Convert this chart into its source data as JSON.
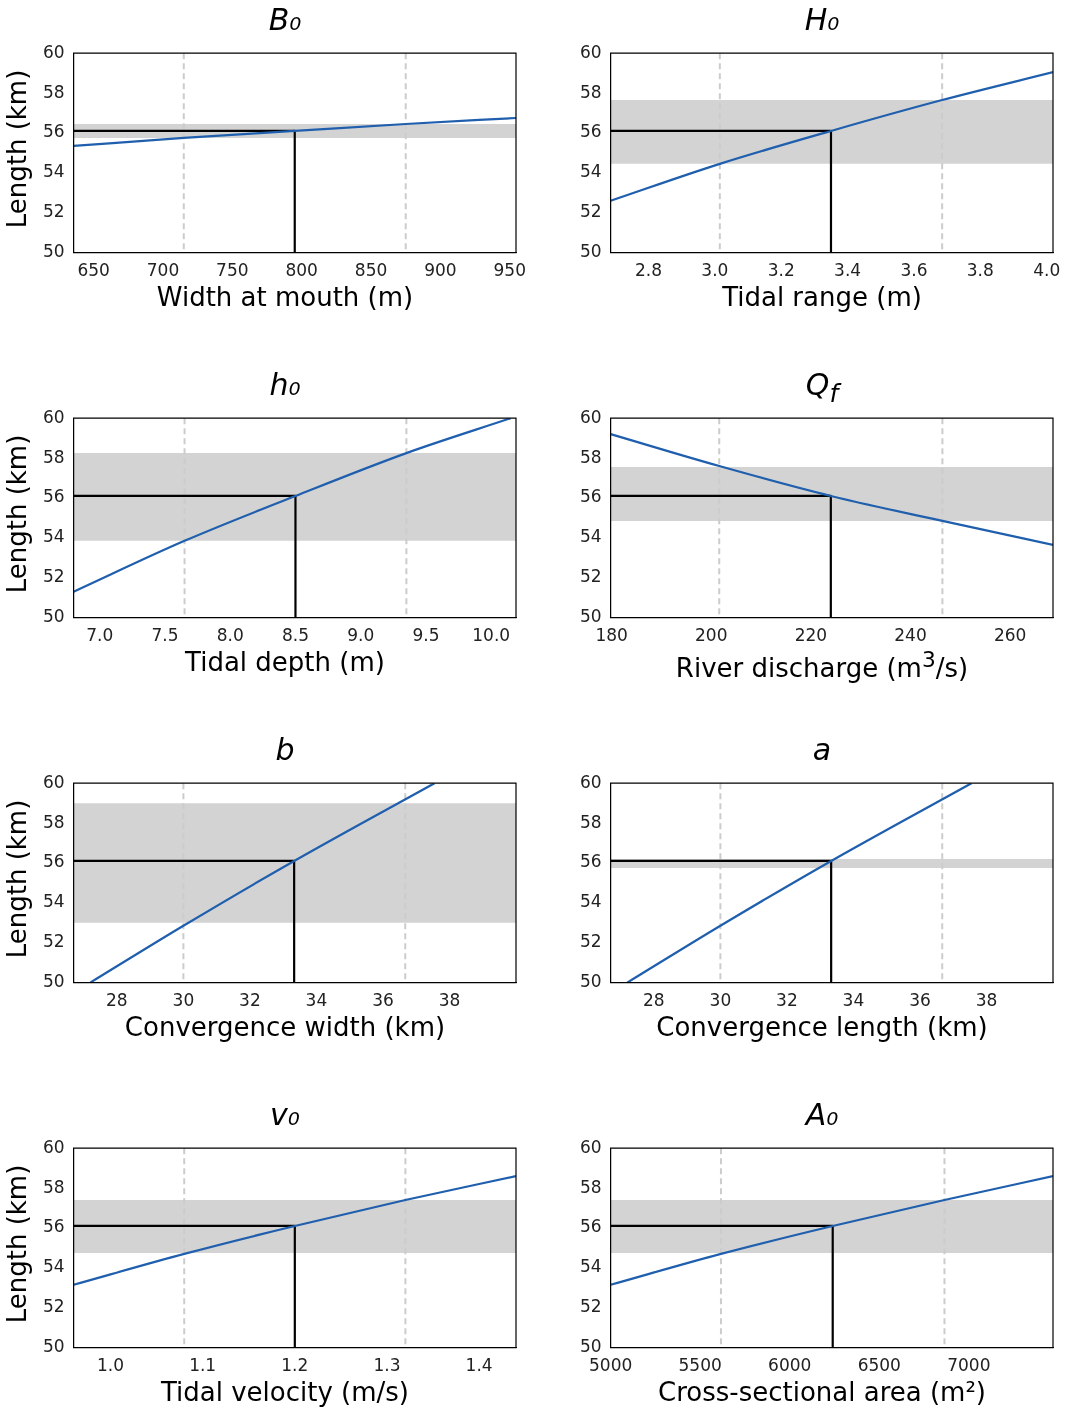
{
  "chart_data": [
    {
      "type": "line",
      "title": "B₀",
      "xlabel": "Width at mouth (m)",
      "ylabel": "Length (km)",
      "xlim": [
        635.6,
        954.5
      ],
      "xticks": [
        650,
        700,
        750,
        800,
        850,
        900,
        950
      ],
      "ylim": [
        50,
        60
      ],
      "yticks": [
        50,
        52,
        54,
        56,
        58,
        60
      ],
      "grid": false,
      "legend": false,
      "series": [
        {
          "color": "#1f5fad",
          "x": [
            635.6,
            715,
            795,
            875,
            954.5
          ],
          "values": [
            55.35,
            55.75,
            56.1,
            56.45,
            56.75
          ]
        },
        {
          "color": "#000000",
          "x": [
            635.6,
            795,
            795
          ],
          "values": [
            56.1,
            56.1,
            50
          ]
        }
      ],
      "ref_lines": [
        {
          "axis": "x",
          "value": 715,
          "color": "#cccccc",
          "line_style": "dashed"
        },
        {
          "axis": "x",
          "value": 875,
          "color": "#cccccc",
          "line_style": "dashed"
        }
      ],
      "bands": [
        {
          "axis": "y",
          "from": 55.75,
          "to": 56.45,
          "color": "#d3d3d3"
        }
      ]
    },
    {
      "type": "line",
      "title": "H₀",
      "xlabel": "Tidal range (m)",
      "xlim": [
        2.686,
        4.019
      ],
      "xticks": [
        2.8,
        {
          "value": 3,
          "label": "3.0"
        },
        3.2,
        3.4,
        3.6,
        3.8,
        {
          "value": 4,
          "label": "4.0"
        }
      ],
      "ylim": [
        50,
        60
      ],
      "yticks": [
        50,
        52,
        54,
        56,
        58,
        60
      ],
      "grid": false,
      "legend": false,
      "series": [
        {
          "color": "#1f5fad",
          "x": [
            2.686,
            3.015,
            3.35,
            3.685,
            4.019
          ],
          "values": [
            52.6,
            54.45,
            56.1,
            57.65,
            59.05
          ]
        },
        {
          "color": "#000000",
          "x": [
            2.686,
            3.35,
            3.35
          ],
          "values": [
            56.1,
            56.1,
            50
          ]
        }
      ],
      "ref_lines": [
        {
          "axis": "x",
          "value": 3.015,
          "color": "#cccccc",
          "line_style": "dashed"
        },
        {
          "axis": "x",
          "value": 3.685,
          "color": "#cccccc",
          "line_style": "dashed"
        }
      ],
      "bands": [
        {
          "axis": "y",
          "from": 54.45,
          "to": 57.65,
          "color": "#d3d3d3"
        }
      ]
    },
    {
      "type": "line",
      "title": "h₀",
      "xlabel": "Tidal depth (m)",
      "ylabel": "Length (km)",
      "xlim": [
        6.8,
        10.19
      ],
      "xticks": [
        {
          "value": 7,
          "label": "7.0"
        },
        7.5,
        {
          "value": 8,
          "label": "8.0"
        },
        8.5,
        {
          "value": 9,
          "label": "9.0"
        },
        9.5,
        {
          "value": 10,
          "label": "10.0"
        }
      ],
      "ylim": [
        50,
        60
      ],
      "yticks": [
        50,
        52,
        54,
        56,
        58,
        60
      ],
      "grid": false,
      "legend": false,
      "series": [
        {
          "color": "#1f5fad",
          "x": [
            6.8,
            7.65,
            8.5,
            9.35,
            10.15
          ],
          "values": [
            51.3,
            53.85,
            56.1,
            58.25,
            60
          ]
        },
        {
          "color": "#000000",
          "x": [
            6.8,
            8.5,
            8.5
          ],
          "values": [
            56.1,
            56.1,
            50
          ]
        }
      ],
      "ref_lines": [
        {
          "axis": "x",
          "value": 7.65,
          "color": "#cccccc",
          "line_style": "dashed"
        },
        {
          "axis": "x",
          "value": 9.35,
          "color": "#cccccc",
          "line_style": "dashed"
        }
      ],
      "bands": [
        {
          "axis": "y",
          "from": 53.85,
          "to": 58.25,
          "color": "#d3d3d3"
        }
      ]
    },
    {
      "type": "line",
      "title": "Q$_{f}$",
      "xlabel": "River discharge (m$^{3}$/s)",
      "xlim": [
        179.8,
        268.6
      ],
      "xticks": [
        180,
        200,
        220,
        240,
        260
      ],
      "ylim": [
        50,
        60
      ],
      "yticks": [
        50,
        52,
        54,
        56,
        58,
        60
      ],
      "grid": false,
      "legend": false,
      "series": [
        {
          "color": "#1f5fad",
          "x": [
            179.8,
            201.6,
            224,
            246.4,
            268.6
          ],
          "values": [
            59.2,
            57.6,
            56.1,
            54.85,
            53.65
          ]
        },
        {
          "color": "#000000",
          "x": [
            179.8,
            224,
            224
          ],
          "values": [
            56.1,
            56.1,
            50
          ]
        }
      ],
      "ref_lines": [
        {
          "axis": "x",
          "value": 201.6,
          "color": "#cccccc",
          "line_style": "dashed"
        },
        {
          "axis": "x",
          "value": 246.4,
          "color": "#cccccc",
          "line_style": "dashed"
        }
      ],
      "bands": [
        {
          "axis": "y",
          "from": 54.85,
          "to": 57.55,
          "color": "#d3d3d3"
        }
      ]
    },
    {
      "type": "line",
      "title": "b",
      "xlabel": "Convergence width (km)",
      "ylabel": "Length (km)",
      "xlim": [
        26.7,
        40
      ],
      "xticks": [
        28,
        30,
        32,
        34,
        36,
        38
      ],
      "ylim": [
        50,
        60
      ],
      "yticks": [
        50,
        52,
        54,
        56,
        58,
        60
      ],
      "grid": false,
      "legend": false,
      "series": [
        {
          "color": "#1f5fad",
          "x": [
            27.2,
            30,
            33.33,
            37.55
          ],
          "values": [
            50,
            52.85,
            56.1,
            60
          ]
        },
        {
          "color": "#000000",
          "x": [
            26.7,
            33.33,
            33.33
          ],
          "values": [
            56.1,
            56.1,
            50
          ]
        }
      ],
      "ref_lines": [
        {
          "axis": "x",
          "value": 30,
          "color": "#cccccc",
          "line_style": "dashed"
        },
        {
          "axis": "x",
          "value": 36.67,
          "color": "#cccccc",
          "line_style": "dashed"
        }
      ],
      "bands": [
        {
          "axis": "y",
          "from": 53,
          "to": 59,
          "color": "#d3d3d3"
        }
      ]
    },
    {
      "type": "line",
      "title": "a",
      "xlabel": "Convergence length (km)",
      "xlim": [
        26.7,
        40
      ],
      "xticks": [
        28,
        30,
        32,
        34,
        36,
        38
      ],
      "ylim": [
        50,
        60
      ],
      "yticks": [
        50,
        52,
        54,
        56,
        58,
        60
      ],
      "grid": false,
      "legend": false,
      "series": [
        {
          "color": "#1f5fad",
          "x": [
            27.2,
            30,
            33.33,
            37.55
          ],
          "values": [
            50,
            52.85,
            56.1,
            60
          ]
        },
        {
          "color": "#000000",
          "x": [
            26.7,
            33.33,
            33.33
          ],
          "values": [
            56.1,
            56.1,
            50
          ]
        }
      ],
      "ref_lines": [
        {
          "axis": "x",
          "value": 30,
          "color": "#cccccc",
          "line_style": "dashed"
        },
        {
          "axis": "x",
          "value": 36.67,
          "color": "#cccccc",
          "line_style": "dashed"
        }
      ],
      "bands": [
        {
          "axis": "y",
          "from": 55.75,
          "to": 56.2,
          "color": "#d3d3d3"
        }
      ]
    },
    {
      "type": "line",
      "title": "v₀",
      "xlabel": "Tidal velocity (m/s)",
      "ylabel": "Length (km)",
      "xlim": [
        0.96,
        1.44
      ],
      "xticks": [
        {
          "value": 1,
          "label": "1.0"
        },
        1.1,
        1.2,
        1.3,
        1.4
      ],
      "ylim": [
        50,
        60
      ],
      "yticks": [
        50,
        52,
        54,
        56,
        58,
        60
      ],
      "grid": false,
      "legend": false,
      "series": [
        {
          "color": "#1f5fad",
          "x": [
            0.96,
            1.08,
            1.2,
            1.32,
            1.44
          ],
          "values": [
            53.15,
            54.7,
            56.1,
            57.4,
            58.6
          ]
        },
        {
          "color": "#000000",
          "x": [
            0.96,
            1.2,
            1.2
          ],
          "values": [
            56.1,
            56.1,
            50
          ]
        }
      ],
      "ref_lines": [
        {
          "axis": "x",
          "value": 1.08,
          "color": "#cccccc",
          "line_style": "dashed"
        },
        {
          "axis": "x",
          "value": 1.32,
          "color": "#cccccc",
          "line_style": "dashed"
        }
      ],
      "bands": [
        {
          "axis": "y",
          "from": 54.75,
          "to": 57.4,
          "color": "#d3d3d3"
        }
      ]
    },
    {
      "type": "line",
      "title": "A₀",
      "xlabel": "Cross-sectional area (m²)",
      "xlim": [
        5000,
        7470
      ],
      "xticks": [
        5000,
        5500,
        6000,
        6500,
        7000
      ],
      "ylim": [
        50,
        60
      ],
      "yticks": [
        50,
        52,
        54,
        56,
        58,
        60
      ],
      "grid": false,
      "legend": false,
      "series": [
        {
          "color": "#1f5fad",
          "x": [
            5000,
            5616,
            6240,
            6864,
            7470
          ],
          "values": [
            53.15,
            54.7,
            56.1,
            57.4,
            58.6
          ]
        },
        {
          "color": "#000000",
          "x": [
            5000,
            6240,
            6240
          ],
          "values": [
            56.1,
            56.1,
            50
          ]
        }
      ],
      "ref_lines": [
        {
          "axis": "x",
          "value": 5616,
          "color": "#cccccc",
          "line_style": "dashed"
        },
        {
          "axis": "x",
          "value": 6864,
          "color": "#cccccc",
          "line_style": "dashed"
        }
      ],
      "bands": [
        {
          "axis": "y",
          "from": 54.75,
          "to": 57.4,
          "color": "#d3d3d3"
        }
      ]
    }
  ]
}
